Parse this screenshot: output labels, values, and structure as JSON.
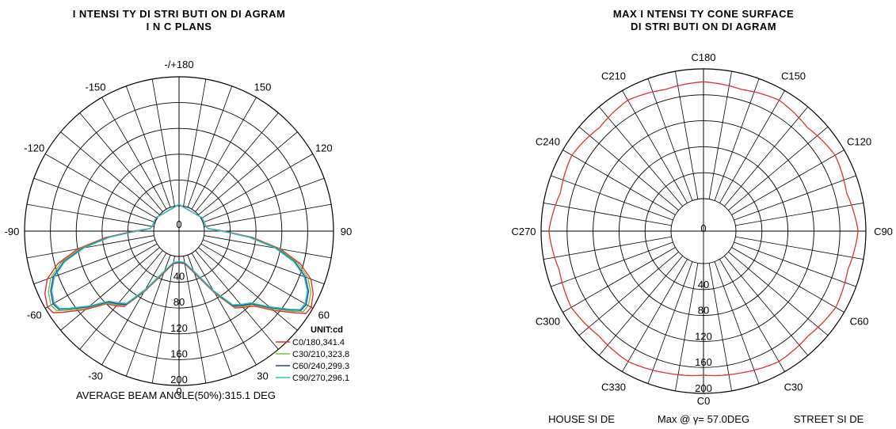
{
  "left_chart": {
    "title_line1": "I NTENSI TY DI STRI BUTI ON DI AGRAM",
    "title_line2": "I N C PLANS",
    "angle_labels": [
      {
        "text": "-/+180",
        "deg": 180
      },
      {
        "text": "150",
        "deg": 150
      },
      {
        "text": "-150",
        "deg": -150
      },
      {
        "text": "120",
        "deg": 120
      },
      {
        "text": "-120",
        "deg": -120
      },
      {
        "text": "90",
        "deg": 90
      },
      {
        "text": "-90",
        "deg": -90
      },
      {
        "text": "60",
        "deg": 60
      },
      {
        "text": "-60",
        "deg": -60
      },
      {
        "text": "30",
        "deg": 30
      },
      {
        "text": "-30",
        "deg": -30
      },
      {
        "text": "0",
        "deg": 0
      }
    ],
    "radial_labels": [
      "0",
      "40",
      "80",
      "120",
      "160",
      "200"
    ],
    "legend_title": "UNIT:cd",
    "legend": [
      {
        "label": "C0/180,341.4",
        "color": "#e03030"
      },
      {
        "label": "C30/210,323.8",
        "color": "#6ec23c"
      },
      {
        "label": "C60/240,299.3",
        "color": "#2040a0"
      },
      {
        "label": "C90/270,296.1",
        "color": "#35c0c0"
      }
    ],
    "footer": "AVERAGE BEAM ANGLE(50%):315.1 DEG"
  },
  "right_chart": {
    "title_line1": "MAX I NTENSI TY CONE SURFACE",
    "title_line2": "DI STRI BUTI ON DI AGRAM",
    "c_labels": [
      {
        "text": "C180",
        "deg": 180
      },
      {
        "text": "C150",
        "deg": 150
      },
      {
        "text": "C210",
        "deg": 210
      },
      {
        "text": "C120",
        "deg": 120
      },
      {
        "text": "C240",
        "deg": 240
      },
      {
        "text": "C90",
        "deg": 90
      },
      {
        "text": "C270",
        "deg": 270
      },
      {
        "text": "C60",
        "deg": 60
      },
      {
        "text": "C300",
        "deg": 300
      },
      {
        "text": "C30",
        "deg": 30
      },
      {
        "text": "C330",
        "deg": 330
      },
      {
        "text": "C0",
        "deg": 0
      }
    ],
    "radial_labels": [
      "0",
      "40",
      "80",
      "120",
      "160",
      "200"
    ],
    "footer_left": "HOUSE SI DE",
    "footer_center": "Max @ γ= 57.0DEG",
    "footer_right": "STREET SI DE",
    "curve_color": "#e03030"
  },
  "chart_data": [
    {
      "type": "polar-line",
      "title": "I NTENSI TY DI STRI BUTI ON DI AGRAM I N C PLANS",
      "angle_unit": "deg",
      "radial_range": [
        0,
        200
      ],
      "radial_ticks": [
        0,
        40,
        80,
        120,
        160,
        200
      ],
      "series": [
        {
          "name": "C0/180,341.4",
          "points": [
            [
              -180,
              2
            ],
            [
              -120,
              2
            ],
            [
              -100,
              3
            ],
            [
              -95,
              6
            ],
            [
              -90,
              30
            ],
            [
              -85,
              75
            ],
            [
              -80,
              120
            ],
            [
              -75,
              155
            ],
            [
              -70,
              178
            ],
            [
              -65,
              190
            ],
            [
              -60,
              196
            ],
            [
              -57,
              193
            ],
            [
              -55,
              180
            ],
            [
              -50,
              150
            ],
            [
              -45,
              120
            ],
            [
              -40,
              112
            ],
            [
              -36,
              105
            ],
            [
              -30,
              70
            ],
            [
              -20,
              30
            ],
            [
              -10,
              12
            ],
            [
              0,
              10
            ],
            [
              10,
              12
            ],
            [
              20,
              30
            ],
            [
              30,
              72
            ],
            [
              36,
              108
            ],
            [
              40,
              115
            ],
            [
              45,
              125
            ],
            [
              50,
              152
            ],
            [
              55,
              182
            ],
            [
              57,
              195
            ],
            [
              60,
              197
            ],
            [
              65,
              190
            ],
            [
              70,
              178
            ],
            [
              75,
              155
            ],
            [
              80,
              120
            ],
            [
              85,
              75
            ],
            [
              90,
              30
            ],
            [
              95,
              6
            ],
            [
              100,
              3
            ],
            [
              120,
              2
            ],
            [
              180,
              2
            ]
          ]
        },
        {
          "name": "C30/210,323.8",
          "points": [
            [
              -180,
              2
            ],
            [
              -120,
              2
            ],
            [
              -100,
              3
            ],
            [
              -95,
              6
            ],
            [
              -90,
              28
            ],
            [
              -85,
              72
            ],
            [
              -80,
              115
            ],
            [
              -75,
              150
            ],
            [
              -70,
              172
            ],
            [
              -65,
              184
            ],
            [
              -60,
              190
            ],
            [
              -57,
              187
            ],
            [
              -55,
              175
            ],
            [
              -50,
              146
            ],
            [
              -45,
              118
            ],
            [
              -40,
              110
            ],
            [
              -36,
              103
            ],
            [
              -30,
              68
            ],
            [
              -20,
              28
            ],
            [
              -10,
              11
            ],
            [
              0,
              9
            ],
            [
              10,
              11
            ],
            [
              20,
              28
            ],
            [
              30,
              70
            ],
            [
              36,
              106
            ],
            [
              40,
              113
            ],
            [
              45,
              122
            ],
            [
              50,
              148
            ],
            [
              55,
              178
            ],
            [
              57,
              190
            ],
            [
              60,
              192
            ],
            [
              65,
              186
            ],
            [
              70,
              173
            ],
            [
              75,
              151
            ],
            [
              80,
              117
            ],
            [
              85,
              73
            ],
            [
              90,
              29
            ],
            [
              95,
              6
            ],
            [
              100,
              3
            ],
            [
              120,
              2
            ],
            [
              180,
              2
            ]
          ]
        },
        {
          "name": "C60/240,299.3",
          "points": [
            [
              -180,
              2
            ],
            [
              -120,
              2
            ],
            [
              -100,
              3
            ],
            [
              -95,
              6
            ],
            [
              -90,
              27
            ],
            [
              -85,
              70
            ],
            [
              -80,
              112
            ],
            [
              -75,
              146
            ],
            [
              -70,
              168
            ],
            [
              -65,
              180
            ],
            [
              -60,
              186
            ],
            [
              -57,
              183
            ],
            [
              -55,
              171
            ],
            [
              -50,
              143
            ],
            [
              -45,
              116
            ],
            [
              -40,
              108
            ],
            [
              -36,
              101
            ],
            [
              -30,
              66
            ],
            [
              -20,
              27
            ],
            [
              -10,
              11
            ],
            [
              0,
              9
            ],
            [
              10,
              11
            ],
            [
              20,
              27
            ],
            [
              30,
              68
            ],
            [
              36,
              104
            ],
            [
              40,
              111
            ],
            [
              45,
              120
            ],
            [
              50,
              145
            ],
            [
              55,
              174
            ],
            [
              57,
              186
            ],
            [
              60,
              188
            ],
            [
              65,
              182
            ],
            [
              70,
              169
            ],
            [
              75,
              147
            ],
            [
              80,
              114
            ],
            [
              85,
              71
            ],
            [
              90,
              28
            ],
            [
              95,
              6
            ],
            [
              100,
              3
            ],
            [
              120,
              2
            ],
            [
              180,
              2
            ]
          ]
        },
        {
          "name": "C90/270,296.1",
          "points": [
            [
              -180,
              2
            ],
            [
              -120,
              2
            ],
            [
              -100,
              3
            ],
            [
              -95,
              6
            ],
            [
              -90,
              26
            ],
            [
              -85,
              68
            ],
            [
              -80,
              110
            ],
            [
              -75,
              144
            ],
            [
              -70,
              166
            ],
            [
              -65,
              178
            ],
            [
              -60,
              184
            ],
            [
              -57,
              181
            ],
            [
              -55,
              169
            ],
            [
              -50,
              141
            ],
            [
              -45,
              114
            ],
            [
              -40,
              106
            ],
            [
              -36,
              99
            ],
            [
              -30,
              65
            ],
            [
              -20,
              26
            ],
            [
              -10,
              10
            ],
            [
              0,
              8
            ],
            [
              10,
              10
            ],
            [
              20,
              26
            ],
            [
              30,
              67
            ],
            [
              36,
              102
            ],
            [
              40,
              109
            ],
            [
              45,
              118
            ],
            [
              50,
              143
            ],
            [
              55,
              172
            ],
            [
              57,
              184
            ],
            [
              60,
              186
            ],
            [
              65,
              180
            ],
            [
              70,
              167
            ],
            [
              75,
              145
            ],
            [
              80,
              112
            ],
            [
              85,
              70
            ],
            [
              90,
              27
            ],
            [
              95,
              6
            ],
            [
              100,
              3
            ],
            [
              120,
              2
            ],
            [
              180,
              2
            ]
          ]
        }
      ],
      "legend_title": "UNIT:cd",
      "legend_placement": "bottom-right"
    },
    {
      "type": "polar-line",
      "title": "MAX I NTENSI TY CONE SURFACE DI STRI BUTI ON DI AGRAM",
      "angle_unit": "deg",
      "radial_range": [
        0,
        200
      ],
      "radial_ticks": [
        0,
        40,
        80,
        120,
        160,
        200
      ],
      "series": [
        {
          "points": [
            [
              0,
              172
            ],
            [
              15,
              176
            ],
            [
              30,
              182
            ],
            [
              45,
              178
            ],
            [
              60,
              185
            ],
            [
              75,
              180
            ],
            [
              90,
              188
            ],
            [
              105,
              178
            ],
            [
              120,
              184
            ],
            [
              135,
              176
            ],
            [
              150,
              183
            ],
            [
              165,
              176
            ],
            [
              180,
              180
            ],
            [
              195,
              176
            ],
            [
              210,
              183
            ],
            [
              225,
              176
            ],
            [
              240,
              184
            ],
            [
              255,
              178
            ],
            [
              270,
              188
            ],
            [
              285,
              180
            ],
            [
              300,
              185
            ],
            [
              315,
              178
            ],
            [
              330,
              182
            ],
            [
              345,
              176
            ],
            [
              360,
              172
            ]
          ]
        }
      ]
    }
  ]
}
